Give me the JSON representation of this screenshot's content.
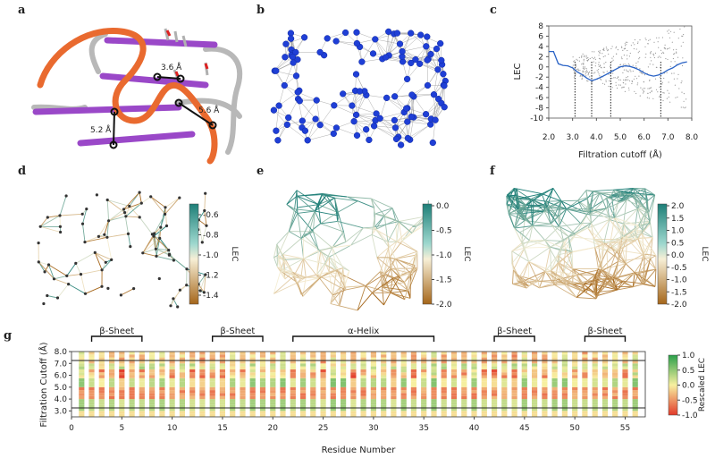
{
  "panels": {
    "a": {
      "label": "a",
      "distances": [
        "3.6 Å",
        "5.2 Å",
        "5.6 Å"
      ]
    },
    "b": {
      "label": "b"
    },
    "c": {
      "label": "c",
      "xlabel": "Filtration cutoff (Å)",
      "ylabel": "LEC",
      "x_ticks": [
        "2.0",
        "3.0",
        "4.0",
        "5.0",
        "6.0",
        "7.0",
        "8.0"
      ],
      "y_ticks": [
        "8",
        "6",
        "4",
        "2",
        "0",
        "-2",
        "-4",
        "-6",
        "-8",
        "-10"
      ]
    },
    "d": {
      "label": "d",
      "colorbar_label": "LEC",
      "colorbar_ticks": [
        "-0.6",
        "-0.8",
        "-1.0",
        "-1.2",
        "-1.4"
      ]
    },
    "e": {
      "label": "e",
      "colorbar_label": "LEC",
      "colorbar_ticks": [
        "0.0",
        "-0.5",
        "-1.0",
        "-1.5",
        "-2.0"
      ]
    },
    "f": {
      "label": "f",
      "colorbar_label": "LEC",
      "colorbar_ticks": [
        "2.0",
        "1.5",
        "1.0",
        "0.5",
        "0.0",
        "-0.5",
        "-1.0",
        "-1.5",
        "-2.0"
      ]
    },
    "g": {
      "label": "g",
      "xlabel": "Residue Number",
      "ylabel": "Filtration Cutoff (Å)",
      "x_ticks": [
        "0",
        "5",
        "10",
        "15",
        "20",
        "25",
        "30",
        "35",
        "40",
        "45",
        "50",
        "55"
      ],
      "y_ticks": [
        "8.0",
        "7.0",
        "6.0",
        "5.0",
        "4.0",
        "3.0"
      ],
      "colorbar_label": "Rescaled LEC",
      "colorbar_ticks": [
        "1.0",
        "0.5",
        "0.0",
        "-0.5",
        "-1.0"
      ],
      "structures": [
        {
          "name": "β-Sheet",
          "start": 2,
          "end": 7
        },
        {
          "name": "β-Sheet",
          "start": 14,
          "end": 19
        },
        {
          "name": "α-Helix",
          "start": 22,
          "end": 36
        },
        {
          "name": "β-Sheet",
          "start": 42,
          "end": 46
        },
        {
          "name": "β-Sheet",
          "start": 51,
          "end": 55
        }
      ]
    }
  },
  "chart_data": [
    {
      "type": "line",
      "panel": "c",
      "xlabel": "Filtration cutoff (Å)",
      "ylabel": "LEC",
      "xlim": [
        2.0,
        8.0
      ],
      "ylim": [
        -10,
        8
      ],
      "series": [
        {
          "x": [
            2.0,
            2.2,
            2.4,
            2.6,
            2.8,
            3.0,
            3.2,
            3.4,
            3.6,
            3.8,
            4.0,
            4.2,
            4.4,
            4.6,
            4.8,
            5.0,
            5.2,
            5.4,
            5.6,
            5.8,
            6.0,
            6.2,
            6.4,
            6.6,
            6.8,
            7.0,
            7.2,
            7.4,
            7.6,
            7.8
          ],
          "y": [
            3.0,
            3.0,
            0.6,
            0.3,
            0.2,
            -0.2,
            -1.0,
            -1.5,
            -2.2,
            -2.7,
            -2.4,
            -2.0,
            -1.5,
            -1.0,
            -0.5,
            0.0,
            0.2,
            0.1,
            -0.2,
            -0.6,
            -1.2,
            -1.6,
            -1.8,
            -1.6,
            -1.2,
            -0.6,
            -0.2,
            0.4,
            0.8,
            1.0
          ]
        }
      ]
    },
    {
      "type": "heatmap",
      "panel": "g",
      "xlabel": "Residue Number",
      "ylabel": "Filtration Cutoff (Å)",
      "xlim": [
        0,
        57
      ],
      "ylim": [
        2.5,
        8.0
      ],
      "residues": [
        1,
        56
      ],
      "zlim": [
        -1.0,
        1.0
      ]
    }
  ]
}
